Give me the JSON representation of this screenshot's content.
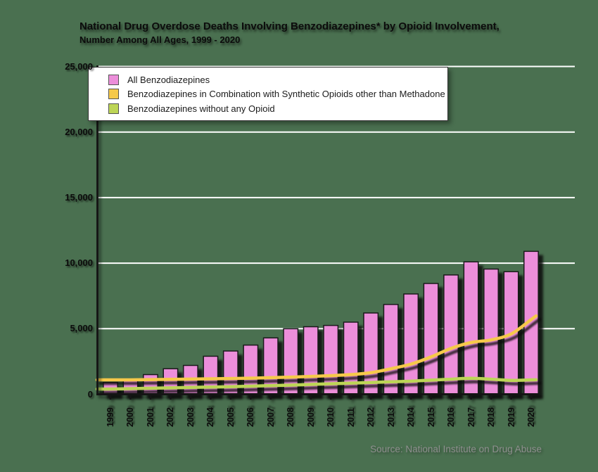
{
  "title": {
    "line1": "National Drug Overdose Deaths Involving Benzodiazepines* by Opioid Involvement,",
    "line2": "Number Among All Ages, 1999 - 2020"
  },
  "source": "Source: National Institute on Drug Abuse",
  "colors": {
    "background": "#4A7050",
    "bar_fill": "#EC8EDA",
    "bar_outline": "#1A1A1A",
    "line_synthetic": "#F6C94A",
    "line_no_opioid": "#BDD556",
    "gridline": "#FFFFFF",
    "axis": "#141414",
    "legend_bg": "#FFFFFF",
    "source_text": "#8F8F8F"
  },
  "chart_data": {
    "type": "bar",
    "title": "National Drug Overdose Deaths Involving Benzodiazepines* by Opioid Involvement, Number Among All Ages, 1999 - 2020",
    "xlabel": "",
    "ylabel": "",
    "ylim": [
      0,
      25000
    ],
    "yticks": [
      0,
      5000,
      10000,
      15000,
      20000,
      25000
    ],
    "grid": true,
    "legend_position": "top-left",
    "categories": [
      "1999",
      "2000",
      "2001",
      "2002",
      "2003",
      "2004",
      "2005",
      "2006",
      "2007",
      "2008",
      "2009",
      "2010",
      "2011",
      "2012",
      "2013",
      "2014",
      "2015",
      "2016",
      "2017",
      "2018",
      "2019",
      "2020"
    ],
    "series": [
      {
        "name": "All Benzodiazepines",
        "type": "bar",
        "color": "#EC8EDA",
        "values": [
          900,
          1050,
          1500,
          1950,
          2200,
          2900,
          3300,
          3750,
          4300,
          5000,
          5150,
          5250,
          5500,
          6200,
          6850,
          7650,
          8450,
          9100,
          10100,
          9550,
          9350,
          10900
        ]
      },
      {
        "name": "Benzodiazepines in Combination with Synthetic Opioids other than Methadone",
        "type": "line",
        "color": "#F6C94A",
        "values": [
          1100,
          1100,
          1120,
          1140,
          1160,
          1180,
          1200,
          1230,
          1270,
          1310,
          1360,
          1420,
          1500,
          1650,
          1950,
          2300,
          2850,
          3500,
          3950,
          4150,
          4600,
          5700
        ]
      },
      {
        "name": "Benzodiazepines without any Opioid",
        "type": "line",
        "color": "#BDD556",
        "values": [
          400,
          430,
          460,
          490,
          520,
          550,
          580,
          620,
          660,
          700,
          750,
          800,
          850,
          900,
          950,
          1000,
          1080,
          1150,
          1220,
          1150,
          1060,
          1100
        ]
      }
    ]
  }
}
